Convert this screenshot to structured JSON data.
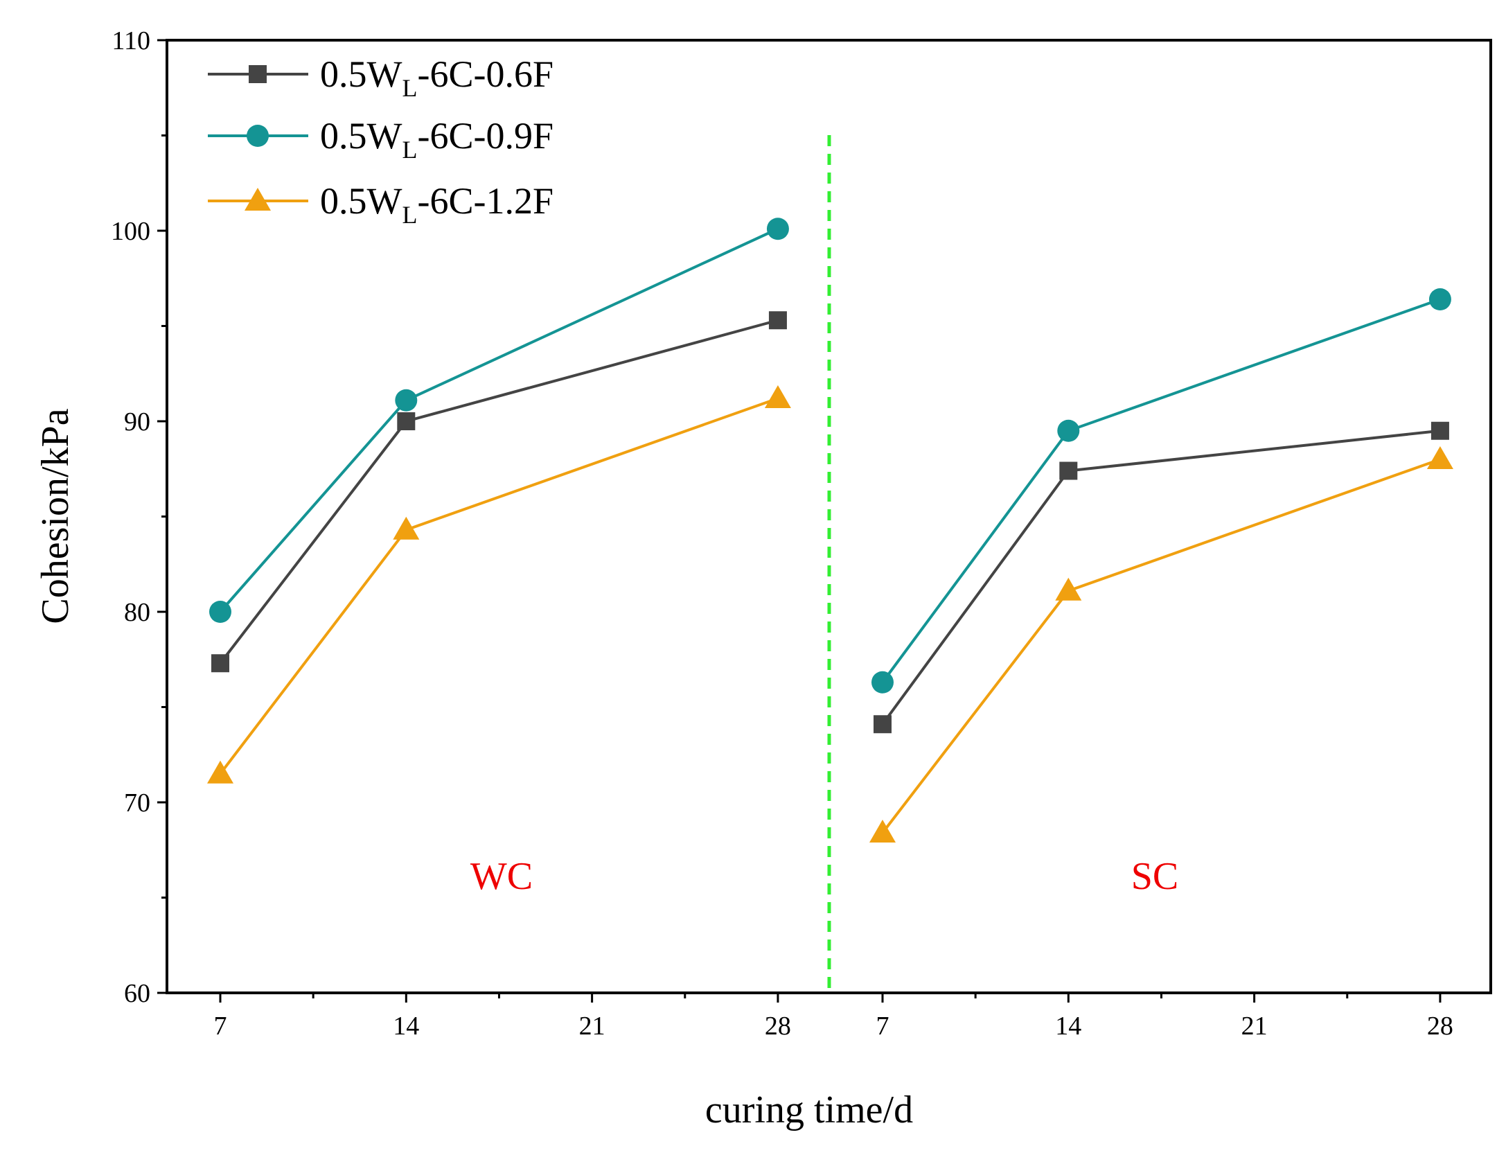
{
  "chart_data": {
    "type": "line",
    "ylabel": "Cohesion/kPa",
    "xlabel": "curing time/d",
    "ylim": [
      60,
      110
    ],
    "yticks": [
      60,
      70,
      80,
      90,
      100,
      110
    ],
    "panels": [
      {
        "name": "WC",
        "x": [
          7,
          14,
          21,
          28
        ],
        "xticks": [
          7,
          14,
          21,
          28
        ]
      },
      {
        "name": "SC",
        "x": [
          7,
          14,
          21,
          28
        ],
        "xticks": [
          7,
          14,
          21,
          28
        ]
      }
    ],
    "series": [
      {
        "name": "0.5WL-6C-0.6F",
        "legend": {
          "pre": "0.5W",
          "sub": "L",
          "post": "-6C-0.6F"
        },
        "color": "#444444",
        "marker": "square",
        "WC": {
          "x": [
            7,
            14,
            28
          ],
          "values": [
            77.3,
            90.0,
            95.3
          ]
        },
        "SC": {
          "x": [
            7,
            14,
            28
          ],
          "values": [
            74.1,
            87.4,
            89.5
          ]
        }
      },
      {
        "name": "0.5WL-6C-0.9F",
        "legend": {
          "pre": "0.5W",
          "sub": "L",
          "post": "-6C-0.9F"
        },
        "color": "#149494",
        "marker": "circle",
        "WC": {
          "x": [
            7,
            14,
            28
          ],
          "values": [
            80.0,
            91.1,
            100.1
          ]
        },
        "SC": {
          "x": [
            7,
            14,
            28
          ],
          "values": [
            76.3,
            89.5,
            96.4
          ]
        }
      },
      {
        "name": "0.5WL-6C-1.2F",
        "legend": {
          "pre": "0.5W",
          "sub": "L",
          "post": "-6C-1.2F"
        },
        "color": "#F0A010",
        "marker": "triangle",
        "WC": {
          "x": [
            7,
            14,
            28
          ],
          "values": [
            71.5,
            84.3,
            91.2
          ]
        },
        "SC": {
          "x": [
            7,
            14,
            28
          ],
          "values": [
            68.4,
            81.1,
            88.0
          ]
        }
      }
    ],
    "divider_color": "#33EE33",
    "region_label_color": "#EE0000",
    "grid": false,
    "legend_position": "top-left"
  }
}
